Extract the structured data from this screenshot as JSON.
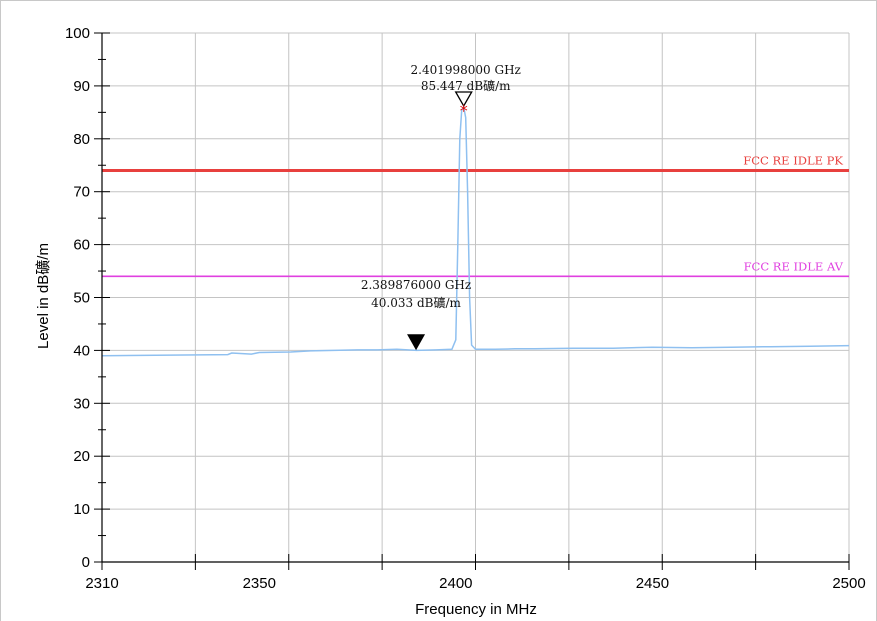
{
  "chart_data": {
    "type": "line",
    "xlabel": "Frequency in MHz",
    "ylabel": "Level in dB礦/m",
    "xlim": [
      2310,
      2500
    ],
    "ylim": [
      0,
      100
    ],
    "x_ticks": [
      2310,
      2350,
      2400,
      2450,
      2500
    ],
    "y_ticks": [
      0,
      10,
      20,
      30,
      40,
      50,
      60,
      70,
      80,
      90,
      100
    ],
    "grid": true,
    "limit_lines": [
      {
        "name": "FCC RE IDLE PK",
        "value": 74,
        "color": "#e8403e"
      },
      {
        "name": "FCC RE IDLE AV",
        "value": 54,
        "color": "#e040e0"
      }
    ],
    "series": [
      {
        "color": "#8fc0f0",
        "x": [
          2310,
          2342,
          2343,
          2348,
          2350,
          2358,
          2363,
          2369,
          2375,
          2380,
          2385,
          2390,
          2395,
          2399,
          2400,
          2400.5,
          2401,
          2401.5,
          2402,
          2402.5,
          2403,
          2403.5,
          2404,
          2405,
          2410,
          2415,
          2420,
          2430,
          2440,
          2450,
          2460,
          2470,
          2480,
          2490,
          2500
        ],
        "y": [
          39.0,
          39.2,
          39.5,
          39.3,
          39.6,
          39.7,
          39.9,
          40.0,
          40.1,
          40.1,
          40.2,
          40.0,
          40.1,
          40.2,
          42.0,
          60.0,
          80.0,
          85.4,
          86.0,
          84.0,
          70.0,
          50.0,
          41.0,
          40.2,
          40.2,
          40.3,
          40.3,
          40.4,
          40.4,
          40.6,
          40.5,
          40.6,
          40.7,
          40.8,
          40.9
        ]
      }
    ],
    "markers": [
      {
        "x": 2401.998,
        "y": 85.447,
        "line1": "2.401998000 GHz",
        "line2": "85.447 dB礦/m"
      },
      {
        "x": 2389.876,
        "y": 40.033,
        "line1": "2.389876000 GHz",
        "line2": "40.033 dB礦/m"
      }
    ]
  }
}
